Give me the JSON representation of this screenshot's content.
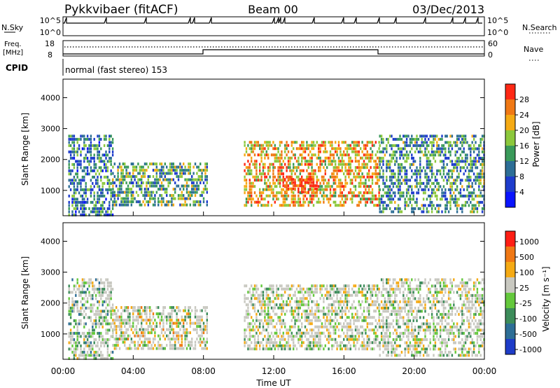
{
  "header": {
    "title": "Pykkvibaer (fitACF)",
    "beam": "Beam 00",
    "date": "03/Dec/2013"
  },
  "top_panels": {
    "nsky_label": "N.Sky",
    "nsky_ticks": [
      "10^5",
      "10^0"
    ],
    "nsearch_label": "N.Search",
    "nsearch_ticks": [
      "10^5",
      "10^0"
    ],
    "freq_label_1": "Freq.",
    "freq_label_2": "[MHz]",
    "freq_ticks": [
      "18",
      "8"
    ],
    "nave_label": "Nave",
    "nave_ticks": [
      "60",
      "0"
    ],
    "cpid_label": "CPID",
    "cpid_text": "normal (fast stereo) 153"
  },
  "chart_data": [
    {
      "type": "heatmap",
      "panel": "power",
      "ylabel": "Slant Range [km]",
      "yticks": [
        "1000",
        "2000",
        "3000",
        "4000"
      ],
      "ylim": [
        180,
        4600
      ],
      "xlim": [
        0,
        24
      ],
      "colorbar_label": "Power [dB]",
      "colorbar_ticks": [
        "4",
        "8",
        "12",
        "16",
        "20",
        "24",
        "28"
      ],
      "colorbar_colors": [
        "#0a14ff",
        "#1e3ccc",
        "#2d6e96",
        "#3a9a5a",
        "#8cc83c",
        "#f5aa14",
        "#f07814",
        "#ff2814"
      ],
      "echo_regions": [
        {
          "t0": 0.3,
          "t1": 2.8,
          "r0": 200,
          "r1": 2800,
          "level": 0.35
        },
        {
          "t0": 2.8,
          "t1": 8.2,
          "r0": 500,
          "r1": 1900,
          "level": 0.45
        },
        {
          "t0": 10.3,
          "t1": 18.0,
          "r0": 500,
          "r1": 2600,
          "level": 0.7
        },
        {
          "t0": 12.5,
          "t1": 14.5,
          "r0": 900,
          "r1": 1400,
          "level": 0.95
        },
        {
          "t0": 18.0,
          "t1": 24.0,
          "r0": 300,
          "r1": 2800,
          "level": 0.4
        }
      ]
    },
    {
      "type": "heatmap",
      "panel": "velocity",
      "ylabel": "Slant Range [km]",
      "yticks": [
        "1000",
        "2000",
        "3000",
        "4000"
      ],
      "ylim": [
        180,
        4600
      ],
      "xlim": [
        0,
        24
      ],
      "xlabel": "Time UT",
      "xticks": [
        "00:00",
        "04:00",
        "08:00",
        "12:00",
        "16:00",
        "20:00",
        "00:00"
      ],
      "colorbar_label": "Velocity [m s⁻¹]",
      "colorbar_ticks": [
        "1000",
        "500",
        "100",
        "25",
        "-25",
        "-100",
        "-500",
        "-1000"
      ],
      "colorbar_colors": [
        "#1e3cc8",
        "#2d6e96",
        "#3c8c5a",
        "#64c83c",
        "#c8c8c0",
        "#f5aa14",
        "#f07814",
        "#ff1e14"
      ],
      "echo_regions": [
        {
          "t0": 0.3,
          "t1": 2.8,
          "r0": 200,
          "r1": 2800,
          "level": 0.4
        },
        {
          "t0": 2.8,
          "t1": 8.2,
          "r0": 500,
          "r1": 1900,
          "level": 0.55
        },
        {
          "t0": 10.3,
          "t1": 18.0,
          "r0": 500,
          "r1": 2600,
          "level": 0.5
        },
        {
          "t0": 18.0,
          "t1": 24.0,
          "r0": 300,
          "r1": 2800,
          "level": 0.5
        }
      ]
    }
  ]
}
